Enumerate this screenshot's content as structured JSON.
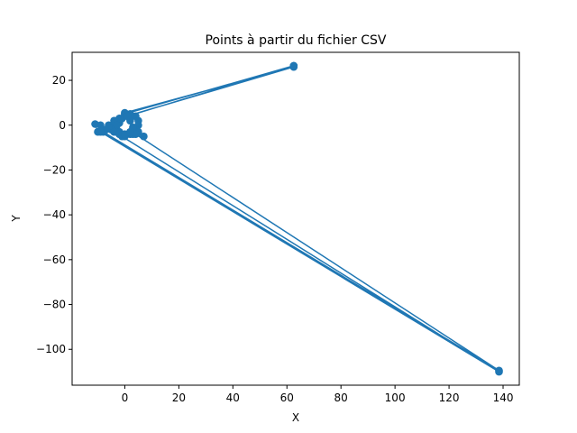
{
  "chart_data": {
    "type": "line",
    "title": "Points à partir du fichier CSV",
    "xlabel": "X",
    "ylabel": "Y",
    "xlim": [
      -19.5,
      146
    ],
    "ylim": [
      -116,
      32.5
    ],
    "xticks": [
      0,
      20,
      40,
      60,
      80,
      100,
      120,
      140
    ],
    "yticks": [
      20,
      0,
      -20,
      -40,
      -60,
      -80,
      -100
    ],
    "xtick_labels": [
      "0",
      "20",
      "40",
      "60",
      "80",
      "100",
      "120",
      "140"
    ],
    "ytick_labels": [
      "20",
      "0",
      "−20",
      "−40",
      "−60",
      "−80",
      "−100"
    ],
    "grid": false,
    "color": "#1f77b4",
    "series": [
      {
        "points": [
          [
            62.5,
            26.5
          ],
          [
            0,
            5
          ],
          [
            2,
            5
          ],
          [
            4,
            4
          ],
          [
            5,
            2
          ],
          [
            5,
            0
          ],
          [
            4,
            -2
          ],
          [
            2,
            -4
          ],
          [
            0,
            -4.5
          ],
          [
            -2,
            -4
          ],
          [
            -3,
            -2
          ],
          [
            -2,
            1
          ],
          [
            -1,
            3
          ],
          [
            0,
            5.5
          ],
          [
            62.5,
            26
          ],
          [
            2,
            4.5
          ],
          [
            -2,
            3
          ],
          [
            -3,
            0
          ],
          [
            -5,
            -1
          ],
          [
            -7,
            -2
          ],
          [
            -9,
            0
          ],
          [
            -11,
            0.5
          ],
          [
            -10,
            -3
          ],
          [
            -8,
            -2
          ],
          [
            -6,
            0
          ],
          [
            -4,
            2
          ],
          [
            -3,
            0
          ],
          [
            -2,
            -3
          ],
          [
            0,
            -5
          ],
          [
            3,
            -4
          ],
          [
            5,
            -3
          ],
          [
            7,
            -5
          ],
          [
            4,
            -4
          ],
          [
            138.5,
            -109.5
          ],
          [
            -8,
            -3
          ],
          [
            -5,
            -2
          ],
          [
            -3,
            -3
          ],
          [
            -1,
            -5
          ],
          [
            138.5,
            -110
          ],
          [
            -9,
            -3
          ],
          [
            -6,
            -1
          ],
          [
            -4,
            -3
          ],
          [
            -2,
            -4
          ],
          [
            0,
            -4
          ],
          [
            2,
            -3
          ],
          [
            3,
            -1
          ],
          [
            2,
            2
          ],
          [
            1,
            4
          ],
          [
            62.5,
            26.5
          ]
        ]
      }
    ]
  }
}
